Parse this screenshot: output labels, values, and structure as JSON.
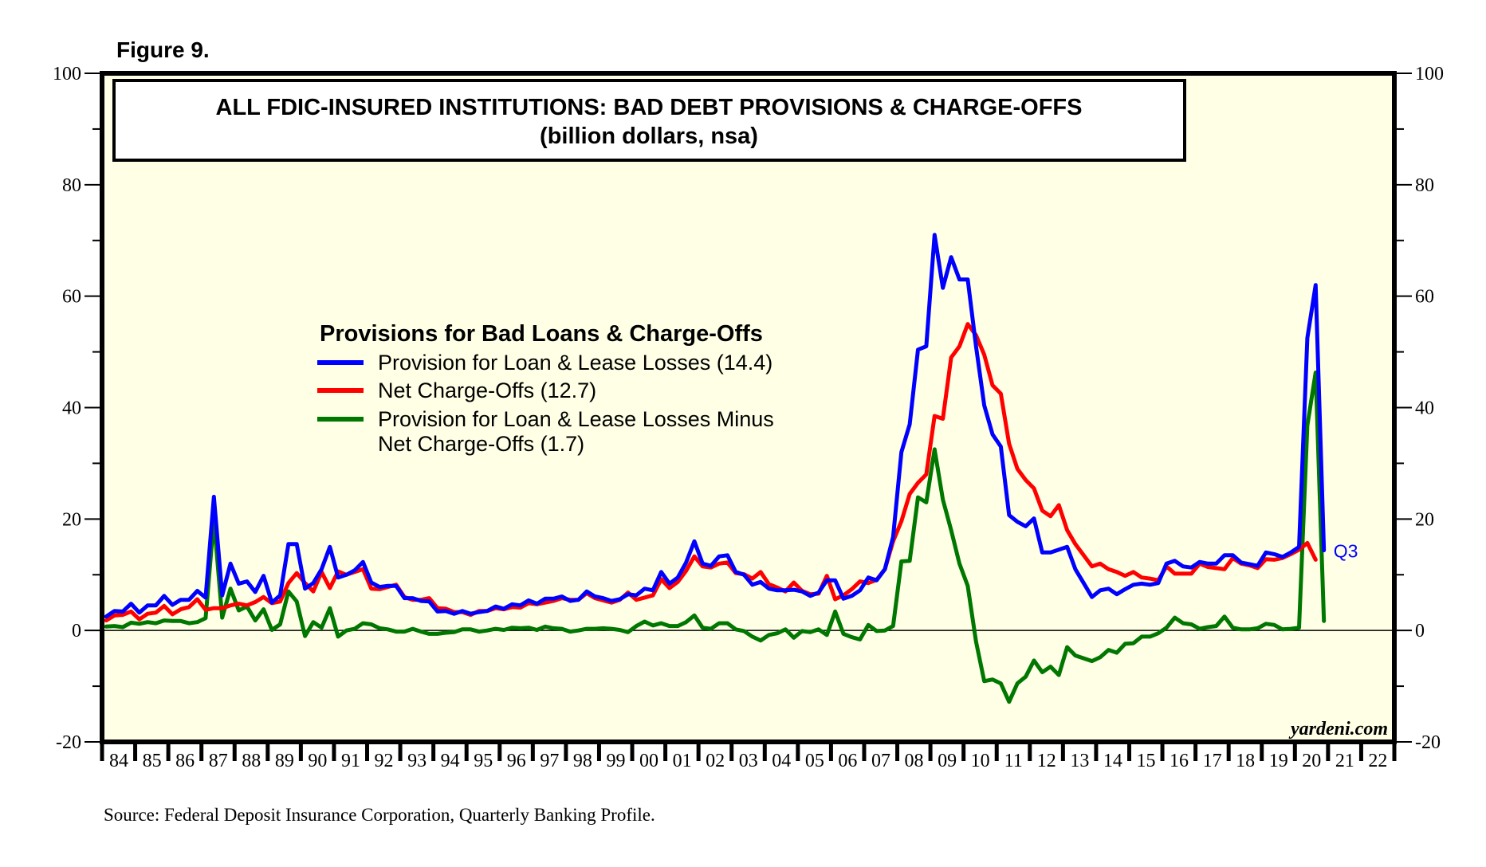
{
  "figure_label": "Figure 9.",
  "source": "Source: Federal Deposit Insurance Corporation, Quarterly Banking Profile.",
  "watermark": "yardeni.com",
  "end_label": "Q3",
  "colors": {
    "plot_background": "#ffffe6",
    "provision": "#0000ff",
    "net_chargeoffs": "#ff0000",
    "difference": "#007700",
    "frame": "#000000"
  },
  "chart_data": {
    "type": "line",
    "title": "ALL FDIC-INSURED INSTITUTIONS: BAD DEBT PROVISIONS & CHARGE-OFFS",
    "subtitle": "(billion dollars, nsa)",
    "legend_title": "Provisions for Bad Loans & Charge-Offs",
    "legend_placement": "center-left",
    "xlabel": "",
    "ylabel": "",
    "ylim": [
      -20,
      100
    ],
    "yticks": [
      -20,
      0,
      20,
      40,
      60,
      80,
      100
    ],
    "y_minor_step": 10,
    "xlim": [
      1984,
      2023
    ],
    "xtick_labels": [
      "84",
      "85",
      "86",
      "87",
      "88",
      "89",
      "90",
      "91",
      "92",
      "93",
      "94",
      "95",
      "96",
      "97",
      "98",
      "99",
      "00",
      "01",
      "02",
      "03",
      "04",
      "05",
      "06",
      "07",
      "08",
      "09",
      "10",
      "11",
      "12",
      "13",
      "14",
      "15",
      "16",
      "17",
      "18",
      "19",
      "20",
      "21",
      "22"
    ],
    "x_start": "1984-Q1",
    "frequency": "quarterly",
    "zero_line": true,
    "grid": false,
    "series": [
      {
        "name": "Provision for Loan & Lease Losses (14.4)",
        "legend_lines": [
          "Provision for Loan & Lease Losses (14.4)"
        ],
        "color": "#0000ff",
        "latest": 14.4,
        "values": [
          2.5,
          3.5,
          3.4,
          4.8,
          3.2,
          4.5,
          4.5,
          6.2,
          4.6,
          5.5,
          5.5,
          7.1,
          5.9,
          24.0,
          6.3,
          12.0,
          8.4,
          8.8,
          6.9,
          9.8,
          5.0,
          6.3,
          15.5,
          15.5,
          7.5,
          8.5,
          11.0,
          15.0,
          9.5,
          10.0,
          10.8,
          12.3,
          8.6,
          7.8,
          8.0,
          8.0,
          5.8,
          5.8,
          5.3,
          5.2,
          3.4,
          3.5,
          3.0,
          3.5,
          3.0,
          3.3,
          3.5,
          4.3,
          3.9,
          4.7,
          4.5,
          5.4,
          4.8,
          5.7,
          5.7,
          6.1,
          5.3,
          5.5,
          7.0,
          6.1,
          5.8,
          5.3,
          5.6,
          6.5,
          6.3,
          7.5,
          7.2,
          10.5,
          8.4,
          9.5,
          12.2,
          16.0,
          12.0,
          11.6,
          13.3,
          13.5,
          10.5,
          10.0,
          8.2,
          8.7,
          7.5,
          7.2,
          7.2,
          7.3,
          7.0,
          6.2,
          6.8,
          9.0,
          9.0,
          5.7,
          6.2,
          7.2,
          9.5,
          9.0,
          11.0,
          16.8,
          32.0,
          37.0,
          50.4,
          51.0,
          71.0,
          61.5,
          67.0,
          63.0,
          63.0,
          51.0,
          40.4,
          35.2,
          33.0,
          20.7,
          19.5,
          18.7,
          20.1,
          14.0,
          14.0,
          14.5,
          15.0,
          11.0,
          8.5,
          6.0,
          7.2,
          7.5,
          6.5,
          7.4,
          8.2,
          8.4,
          8.2,
          8.5,
          12.0,
          12.5,
          11.5,
          11.3,
          12.3,
          12.0,
          12.0,
          13.5,
          13.5,
          12.2,
          11.9,
          11.6,
          14.0,
          13.7,
          13.2,
          14.0,
          15.0,
          52.5,
          62.0,
          14.4
        ]
      },
      {
        "name": "Net Charge-Offs (12.7)",
        "legend_lines": [
          "Net Charge-Offs (12.7)"
        ],
        "color": "#ff0000",
        "latest": 12.7,
        "values": [
          1.8,
          2.7,
          2.8,
          3.4,
          2.0,
          3.0,
          3.2,
          4.4,
          2.9,
          3.8,
          4.2,
          5.6,
          3.7,
          4.0,
          4.0,
          4.5,
          4.8,
          4.5,
          5.1,
          6.0,
          4.9,
          5.2,
          8.5,
          10.3,
          8.5,
          7.0,
          10.5,
          7.6,
          10.6,
          10.0,
          10.5,
          11.0,
          7.5,
          7.4,
          7.8,
          8.2,
          6.0,
          5.5,
          5.5,
          5.8,
          4.0,
          3.9,
          3.3,
          3.3,
          2.8,
          3.5,
          3.5,
          4.0,
          3.8,
          4.2,
          4.1,
          4.9,
          4.7,
          5.0,
          5.3,
          5.8,
          5.5,
          5.5,
          6.7,
          5.8,
          5.4,
          5.0,
          5.5,
          6.8,
          5.5,
          5.9,
          6.3,
          9.2,
          7.6,
          8.7,
          10.7,
          13.3,
          11.5,
          11.3,
          12.0,
          12.2,
          10.3,
          10.1,
          9.3,
          10.5,
          8.3,
          7.7,
          7.0,
          8.6,
          7.1,
          6.5,
          6.6,
          9.8,
          5.6,
          6.3,
          7.4,
          8.8,
          8.5,
          9.1,
          11.0,
          16.0,
          19.6,
          24.5,
          26.5,
          28.0,
          38.5,
          38.0,
          49.0,
          51.0,
          55.0,
          53.0,
          49.5,
          44.0,
          42.5,
          33.5,
          29.0,
          27.0,
          25.5,
          21.5,
          20.5,
          22.5,
          18.0,
          15.5,
          13.5,
          11.5,
          12.0,
          11.0,
          10.5,
          9.8,
          10.5,
          9.5,
          9.3,
          9.0,
          11.5,
          10.2,
          10.2,
          10.2,
          12.0,
          11.4,
          11.2,
          11.0,
          13.0,
          12.0,
          11.7,
          11.2,
          12.8,
          12.7,
          13.0,
          13.7,
          14.5,
          15.7,
          12.7
        ]
      },
      {
        "name": "Provision for Loan & Lease Losses Minus Net Charge-Offs (1.7)",
        "legend_lines": [
          "Provision for Loan & Lease Losses Minus",
          "Net Charge-Offs (1.7)"
        ],
        "color": "#007700",
        "latest": 1.7,
        "values": [
          0.7,
          0.8,
          0.6,
          1.4,
          1.2,
          1.5,
          1.3,
          1.8,
          1.7,
          1.7,
          1.3,
          1.5,
          2.2,
          20.0,
          2.3,
          7.5,
          3.6,
          4.3,
          1.8,
          3.8,
          0.1,
          1.1,
          7.0,
          5.2,
          -1.0,
          1.5,
          0.5,
          4.0,
          -1.1,
          0.0,
          0.3,
          1.3,
          1.1,
          0.4,
          0.2,
          -0.2,
          -0.2,
          0.3,
          -0.2,
          -0.6,
          -0.6,
          -0.4,
          -0.3,
          0.2,
          0.2,
          -0.2,
          0.0,
          0.3,
          0.1,
          0.5,
          0.4,
          0.5,
          0.1,
          0.7,
          0.4,
          0.3,
          -0.2,
          0.0,
          0.3,
          0.3,
          0.4,
          0.3,
          0.1,
          -0.3,
          0.8,
          1.6,
          0.9,
          1.3,
          0.8,
          0.8,
          1.5,
          2.7,
          0.5,
          0.3,
          1.3,
          1.3,
          0.2,
          -0.1,
          -1.1,
          -1.8,
          -0.8,
          -0.5,
          0.2,
          -1.3,
          -0.1,
          -0.3,
          0.2,
          -0.8,
          3.4,
          -0.6,
          -1.2,
          -1.6,
          1.0,
          -0.1,
          0.0,
          0.8,
          12.4,
          12.5,
          23.9,
          23.0,
          32.5,
          23.5,
          18.0,
          12.0,
          8.0,
          -2.0,
          -9.1,
          -8.8,
          -9.5,
          -12.8,
          -9.5,
          -8.3,
          -5.4,
          -7.5,
          -6.5,
          -8.0,
          -3.0,
          -4.5,
          -5.0,
          -5.5,
          -4.8,
          -3.5,
          -4.0,
          -2.4,
          -2.3,
          -1.1,
          -1.1,
          -0.5,
          0.5,
          2.3,
          1.3,
          1.1,
          0.3,
          0.6,
          0.8,
          2.5,
          0.5,
          0.2,
          0.2,
          0.4,
          1.2,
          1.0,
          0.2,
          0.3,
          0.5,
          36.8,
          46.3,
          1.7
        ]
      }
    ]
  }
}
